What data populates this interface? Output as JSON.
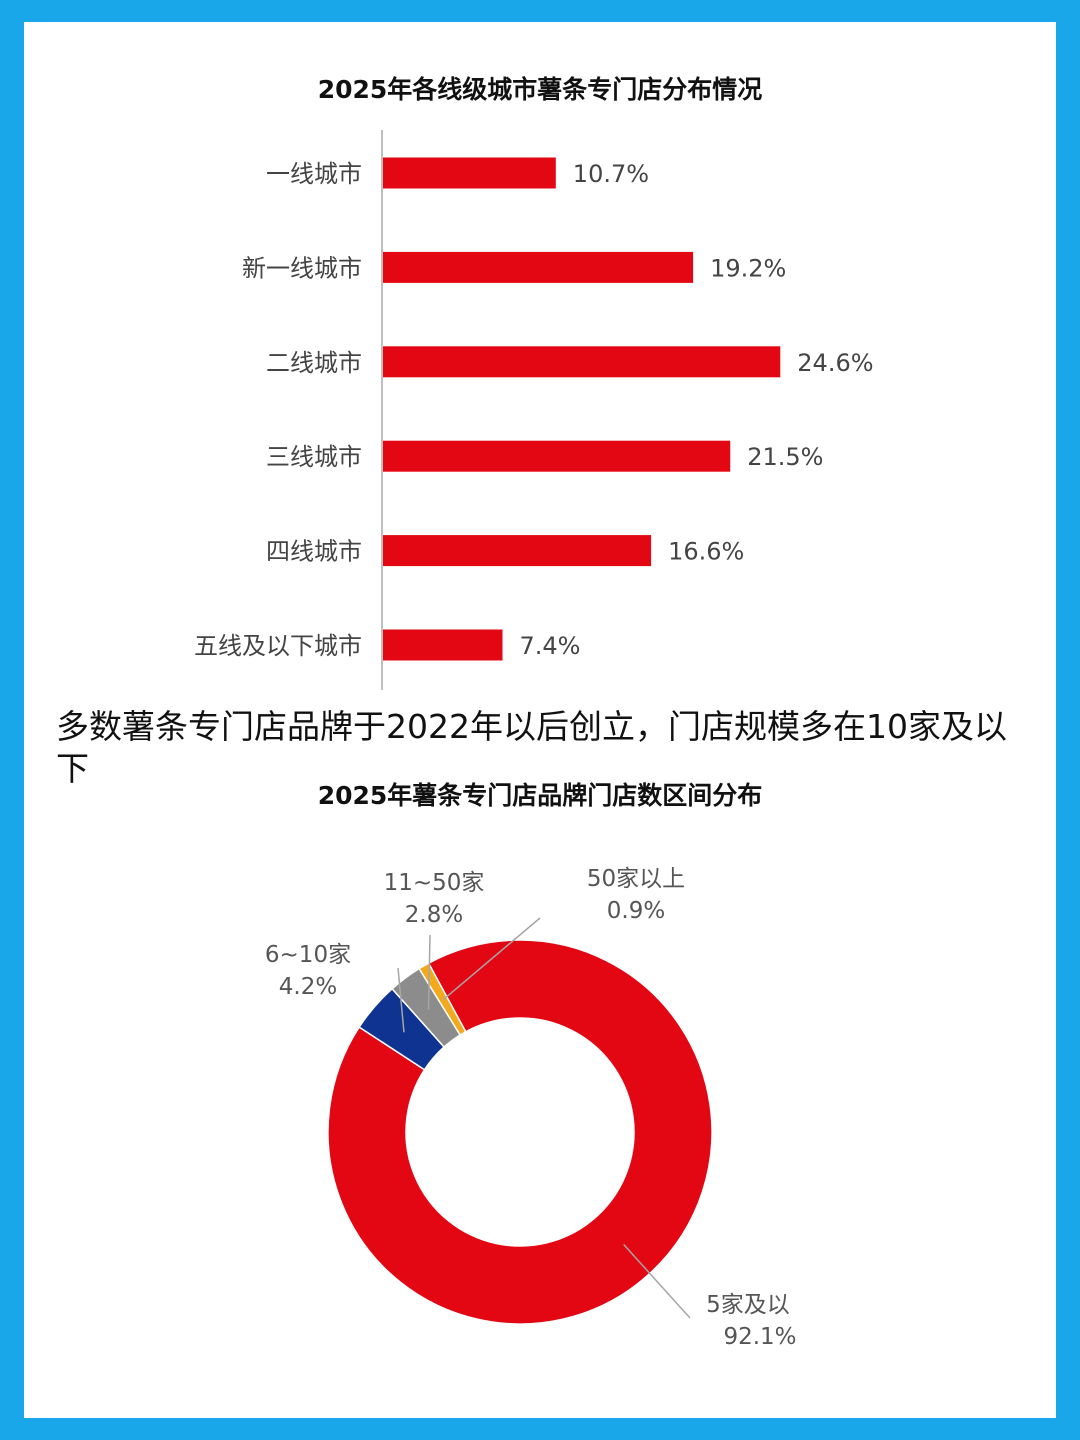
{
  "heading": "多数薯条专门店品牌于2022年以后创立，门店规模多在10家及以下",
  "colors": {
    "bar": "#e30613",
    "axis": "#bfbfbf"
  },
  "chart_data": [
    {
      "type": "bar",
      "orientation": "horizontal",
      "title": "2025年各线级城市薯条专门店分布情况",
      "categories": [
        "一线城市",
        "新一线城市",
        "二线城市",
        "三线城市",
        "四线城市",
        "五线及以下城市"
      ],
      "values": [
        10.7,
        19.2,
        24.6,
        21.5,
        16.6,
        7.4
      ],
      "value_labels": [
        "10.7%",
        "19.2%",
        "24.6%",
        "21.5%",
        "16.6%",
        "7.4%"
      ],
      "unit": "%",
      "color": "#e30613",
      "xlim": [
        0,
        30
      ]
    },
    {
      "type": "pie",
      "style": "donut",
      "title": "2025年薯条专门店品牌门店数区间分布",
      "slices": [
        {
          "name": "5家及以",
          "value": 92.1,
          "label": "92.1%",
          "color": "#e30613"
        },
        {
          "name": "6~10家",
          "value": 4.2,
          "label": "4.2%",
          "color": "#0f3391"
        },
        {
          "name": "11~50家",
          "value": 2.8,
          "label": "2.8%",
          "color": "#8c8c8c"
        },
        {
          "name": "50家以上",
          "value": 0.9,
          "label": "0.9%",
          "color": "#f2a91e"
        }
      ]
    }
  ]
}
